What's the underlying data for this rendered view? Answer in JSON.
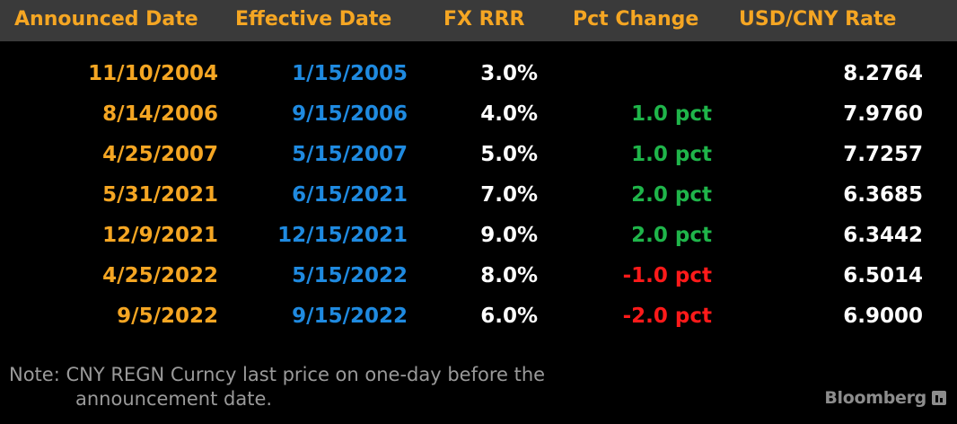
{
  "header": {
    "announced": "Announced Date",
    "effective": "Effective Date",
    "fx_rrr": "FX RRR",
    "pct_change": "Pct Change",
    "rate": "USD/CNY Rate"
  },
  "rows": [
    {
      "announced": "11/10/2004",
      "effective": "1/15/2005",
      "fx_rrr": "3.0%",
      "pct_change": "",
      "rate": "8.2764"
    },
    {
      "announced": "8/14/2006",
      "effective": "9/15/2006",
      "fx_rrr": "4.0%",
      "pct_change": "1.0 pct",
      "rate": "7.9760"
    },
    {
      "announced": "4/25/2007",
      "effective": "5/15/2007",
      "fx_rrr": "5.0%",
      "pct_change": "1.0 pct",
      "rate": "7.7257"
    },
    {
      "announced": "5/31/2021",
      "effective": "6/15/2021",
      "fx_rrr": "7.0%",
      "pct_change": "2.0 pct",
      "rate": "6.3685"
    },
    {
      "announced": "12/9/2021",
      "effective": "12/15/2021",
      "fx_rrr": "9.0%",
      "pct_change": "2.0 pct",
      "rate": "6.3442"
    },
    {
      "announced": "4/25/2022",
      "effective": "5/15/2022",
      "fx_rrr": "8.0%",
      "pct_change": "-1.0 pct",
      "rate": "6.5014"
    },
    {
      "announced": "9/5/2022",
      "effective": "9/15/2022",
      "fx_rrr": "6.0%",
      "pct_change": "-2.0 pct",
      "rate": "6.9000"
    }
  ],
  "note": {
    "line1": "Note: CNY REGN Curncy last price on one-day before the",
    "line2": "announcement date."
  },
  "brand": {
    "name": "Bloomberg",
    "icon": "bloomberg-terminal-icon"
  },
  "colors": {
    "announced": "#f5a623",
    "effective": "#1f8ae0",
    "positive": "#1fb54a",
    "negative": "#ff1a1a",
    "header_bg": "#3a3a3a"
  }
}
